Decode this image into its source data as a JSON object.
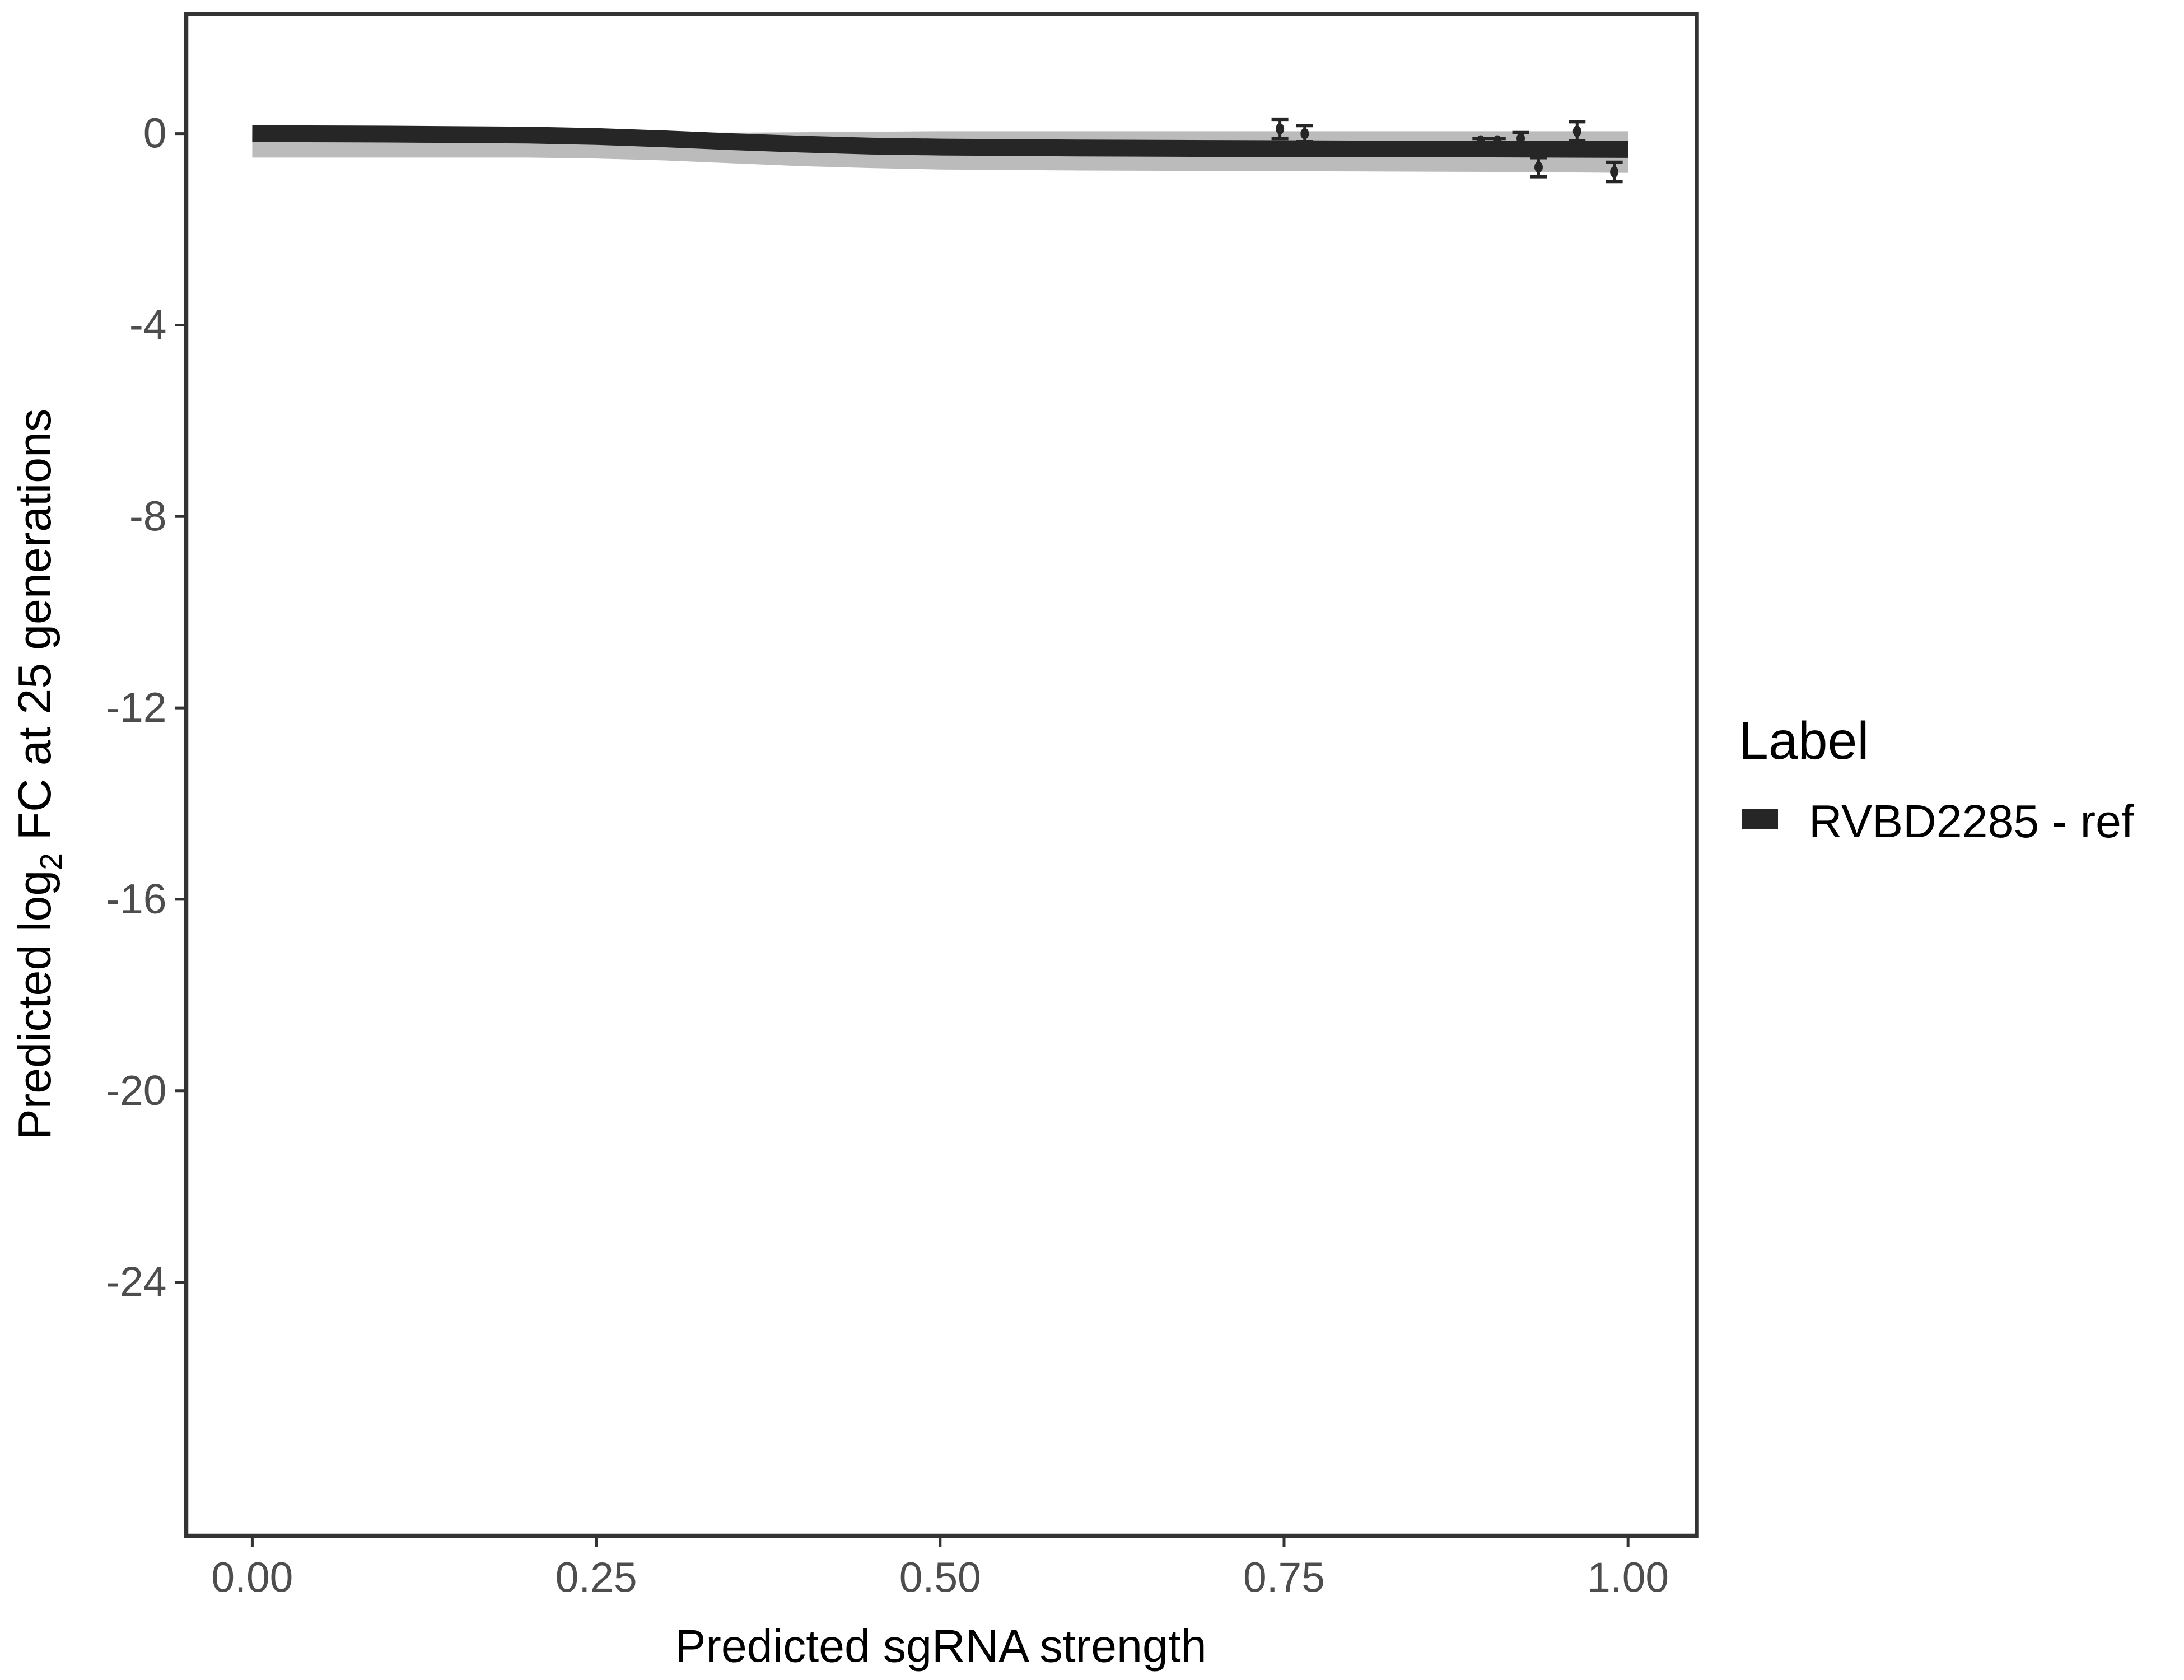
{
  "chart_data": {
    "type": "line",
    "title": "",
    "xlabel": "Predicted sgRNA strength",
    "ylabel_prefix": "Predicted  log",
    "ylabel_sub": "2",
    "ylabel_suffix": " FC at 25 generations",
    "xlim": [
      -0.048,
      1.05
    ],
    "ylim": [
      -29.3,
      2.5
    ],
    "xticks": [
      0,
      0.25,
      0.5,
      0.75,
      1.0
    ],
    "xtick_labels": [
      "0.00",
      "0.25",
      "0.50",
      "0.75",
      "1.00"
    ],
    "yticks": [
      0,
      -4,
      -8,
      -12,
      -16,
      -20,
      -24
    ],
    "ytick_labels": [
      "0",
      "-4",
      "-8",
      "-12",
      "-16",
      "-20",
      "-24"
    ],
    "grid": false,
    "legend": {
      "title": "Label",
      "placement": "right",
      "entries": [
        "RVBD2285 - ref"
      ]
    },
    "series": [
      {
        "name": "RVBD2285 - ref",
        "color": "#262626",
        "x": [
          0,
          0.1,
          0.2,
          0.25,
          0.3,
          0.35,
          0.4,
          0.45,
          0.5,
          0.6,
          0.7,
          0.8,
          0.9,
          1.0
        ],
        "y": [
          0,
          -0.01,
          -0.03,
          -0.06,
          -0.11,
          -0.17,
          -0.22,
          -0.26,
          -0.28,
          -0.3,
          -0.31,
          -0.32,
          -0.32,
          -0.33
        ],
        "ribbon_upper": [
          0.05,
          0.05,
          0.05,
          0.04,
          0.03,
          0.02,
          0.03,
          0.04,
          0.05,
          0.05,
          0.05,
          0.05,
          0.05,
          0.05
        ],
        "ribbon_lower": [
          -0.5,
          -0.5,
          -0.5,
          -0.52,
          -0.56,
          -0.62,
          -0.68,
          -0.72,
          -0.75,
          -0.77,
          -0.78,
          -0.79,
          -0.8,
          -0.82
        ]
      }
    ],
    "points": {
      "x": [
        0.747,
        0.765,
        0.893,
        0.905,
        0.922,
        0.935,
        0.963,
        0.99
      ],
      "y": [
        0.1,
        0.0,
        -0.15,
        -0.15,
        -0.1,
        -0.7,
        0.05,
        -0.8
      ],
      "err": [
        0.2,
        0.17,
        0.05,
        0.05,
        0.12,
        0.2,
        0.2,
        0.2
      ]
    }
  }
}
